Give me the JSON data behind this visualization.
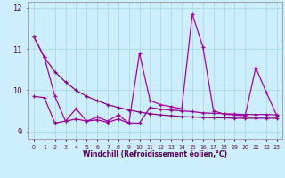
{
  "x": [
    0,
    1,
    2,
    3,
    4,
    5,
    6,
    7,
    8,
    9,
    10,
    11,
    12,
    13,
    14,
    15,
    16,
    17,
    18,
    19,
    20,
    21,
    22,
    23
  ],
  "smooth_line": [
    11.3,
    10.8,
    10.45,
    10.2,
    10.0,
    9.85,
    9.75,
    9.65,
    9.58,
    9.52,
    9.47,
    9.43,
    9.4,
    9.38,
    9.36,
    9.35,
    9.34,
    9.33,
    9.33,
    9.32,
    9.32,
    9.32,
    9.32,
    9.32
  ],
  "jagged_line": [
    11.3,
    10.8,
    9.85,
    9.25,
    9.55,
    9.25,
    9.35,
    9.25,
    9.4,
    9.2,
    10.9,
    9.75,
    9.65,
    9.6,
    9.55,
    11.85,
    11.05,
    9.5,
    9.42,
    9.4,
    9.38,
    10.55,
    9.95,
    9.38
  ],
  "flat_line": [
    9.85,
    9.82,
    9.2,
    9.25,
    9.3,
    9.25,
    9.28,
    9.22,
    9.3,
    9.2,
    9.2,
    9.58,
    9.54,
    9.52,
    9.5,
    9.48,
    9.45,
    9.44,
    9.43,
    9.42,
    9.41,
    9.41,
    9.41,
    9.4
  ],
  "bg_color": "#cceeff",
  "grid_color": "#aadddd",
  "line_color_smooth": "#880088",
  "line_color_jagged": "#aa00aa",
  "line_color_flat": "#990099",
  "xlabel": "Windchill (Refroidissement éolien,°C)",
  "ylim": [
    8.82,
    12.15
  ],
  "xlim": [
    -0.5,
    23.5
  ],
  "yticks": [
    9,
    10,
    11,
    12
  ],
  "xticks": [
    0,
    1,
    2,
    3,
    4,
    5,
    6,
    7,
    8,
    9,
    10,
    11,
    12,
    13,
    14,
    15,
    16,
    17,
    18,
    19,
    20,
    21,
    22,
    23
  ]
}
